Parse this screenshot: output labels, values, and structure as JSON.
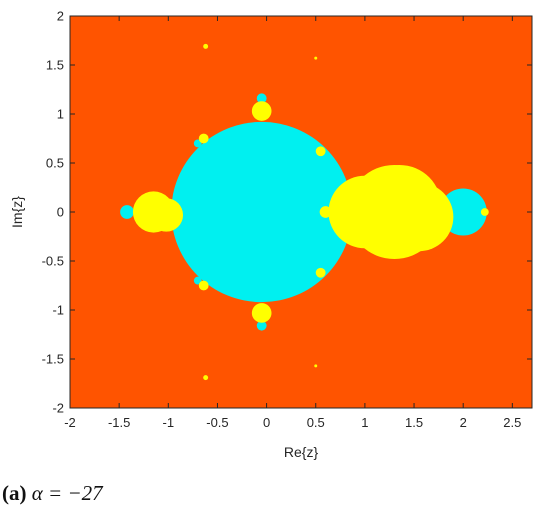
{
  "chart_data": {
    "type": "heatmap",
    "title": "",
    "xlabel": "Re{z}",
    "ylabel": "Im{z}",
    "xlim": [
      -2,
      2.7
    ],
    "ylim": [
      -2,
      2
    ],
    "xticks": [
      "-2",
      "-1.5",
      "-1",
      "-0.5",
      "0",
      "0.5",
      "1",
      "1.5",
      "2",
      "2.5"
    ],
    "yticks": [
      "2",
      "1.5",
      "1",
      "0.5",
      "0",
      "-0.5",
      "-1",
      "-1.5",
      "-2"
    ],
    "grid": false,
    "legend": "none",
    "colors": {
      "background_region": "#ff5400",
      "cyan_region": "#00f0f0",
      "yellow_region": "#ffff00"
    },
    "regions": {
      "cyan": [
        {
          "shape": "disk",
          "center": [
            -0.05,
            0
          ],
          "radius": 0.92
        },
        {
          "shape": "disk",
          "center": [
            2.0,
            0
          ],
          "radius": 0.24
        },
        {
          "shape": "disk",
          "center": [
            -1.42,
            0
          ],
          "radius": 0.07
        },
        {
          "shape": "disk",
          "center": [
            -0.05,
            1.16
          ],
          "radius": 0.05
        },
        {
          "shape": "disk",
          "center": [
            -0.05,
            -1.16
          ],
          "radius": 0.05
        },
        {
          "shape": "disk",
          "center": [
            -0.7,
            0.7
          ],
          "radius": 0.04
        },
        {
          "shape": "disk",
          "center": [
            -0.7,
            -0.7
          ],
          "radius": 0.04
        },
        {
          "shape": "disk",
          "center": [
            0.52,
            0.58
          ],
          "radius": 0.04
        },
        {
          "shape": "disk",
          "center": [
            0.52,
            -0.58
          ],
          "radius": 0.04
        }
      ],
      "yellow": [
        {
          "shape": "disk",
          "center": [
            1.35,
            0.05
          ],
          "radius": 0.43
        },
        {
          "shape": "disk",
          "center": [
            1.0,
            0
          ],
          "radius": 0.37
        },
        {
          "shape": "disk",
          "center": [
            1.55,
            -0.05
          ],
          "radius": 0.35
        },
        {
          "shape": "disk",
          "center": [
            1.3,
            0
          ],
          "radius": 0.48
        },
        {
          "shape": "disk",
          "center": [
            -1.15,
            0
          ],
          "radius": 0.21
        },
        {
          "shape": "disk",
          "center": [
            -1.02,
            -0.03
          ],
          "radius": 0.17
        },
        {
          "shape": "disk",
          "center": [
            -0.05,
            1.03
          ],
          "radius": 0.1
        },
        {
          "shape": "disk",
          "center": [
            -0.05,
            -1.03
          ],
          "radius": 0.1
        },
        {
          "shape": "disk",
          "center": [
            0.6,
            0
          ],
          "radius": 0.06
        },
        {
          "shape": "disk",
          "center": [
            2.22,
            0
          ],
          "radius": 0.04
        },
        {
          "shape": "disk",
          "center": [
            -0.64,
            0.75
          ],
          "radius": 0.05
        },
        {
          "shape": "disk",
          "center": [
            -0.64,
            -0.75
          ],
          "radius": 0.05
        },
        {
          "shape": "disk",
          "center": [
            0.55,
            0.62
          ],
          "radius": 0.05
        },
        {
          "shape": "disk",
          "center": [
            0.55,
            -0.62
          ],
          "radius": 0.05
        },
        {
          "shape": "disk",
          "center": [
            -0.62,
            1.69
          ],
          "radius": 0.025
        },
        {
          "shape": "disk",
          "center": [
            -0.62,
            -1.69
          ],
          "radius": 0.025
        },
        {
          "shape": "disk",
          "center": [
            0.5,
            1.57
          ],
          "radius": 0.015
        },
        {
          "shape": "disk",
          "center": [
            0.5,
            -1.57
          ],
          "radius": 0.015
        }
      ]
    }
  },
  "caption": {
    "label": "(a)",
    "math": "α = −27"
  }
}
